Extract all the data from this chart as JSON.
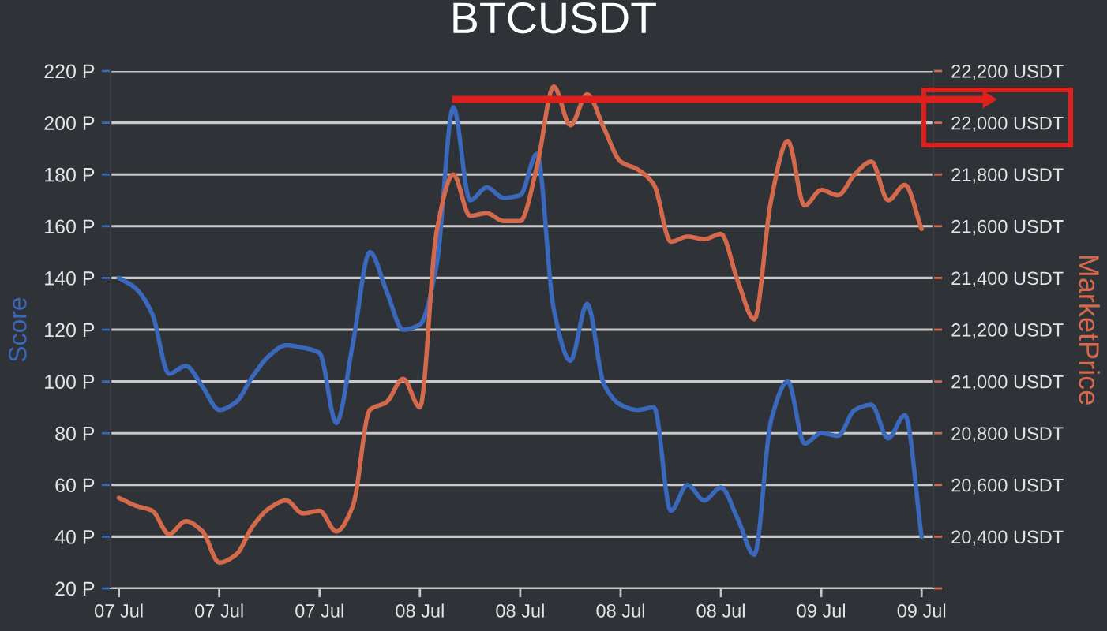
{
  "chart_data": {
    "type": "line",
    "title": "BTCUSDT",
    "ylabel": "Score",
    "y2label": "MarketPrice",
    "categories": [
      "07 Jul",
      null,
      null,
      null,
      null,
      null,
      "07 Jul",
      null,
      null,
      null,
      null,
      null,
      "07 Jul",
      null,
      null,
      null,
      null,
      null,
      "08 Jul",
      null,
      null,
      null,
      null,
      null,
      "08 Jul",
      null,
      null,
      null,
      null,
      null,
      "08 Jul",
      null,
      null,
      null,
      null,
      null,
      "08 Jul",
      null,
      null,
      null,
      null,
      null,
      "09 Jul",
      null,
      null,
      null,
      null,
      null,
      "09 Jul"
    ],
    "series": [
      {
        "color": "#3a68bd",
        "values": [
          140,
          136,
          126,
          103,
          106,
          98,
          89,
          92,
          102,
          110,
          114,
          113,
          111,
          84,
          115,
          150,
          135,
          120,
          122,
          145,
          206,
          170,
          175,
          171,
          172,
          188,
          128,
          108,
          130,
          99,
          91,
          89,
          90,
          50,
          60,
          54,
          59,
          47,
          33,
          85,
          100,
          76,
          80,
          79,
          89,
          91,
          78,
          87,
          40
        ]
      },
      {
        "color": "#d4694c",
        "axis": "y2",
        "values": [
          20550,
          20520,
          20500,
          20410,
          20460,
          20420,
          20300,
          20330,
          20440,
          20510,
          20540,
          20490,
          20500,
          20420,
          20520,
          20890,
          20920,
          21010,
          20900,
          21580,
          21800,
          21640,
          21650,
          21620,
          21620,
          21830,
          22140,
          21990,
          22110,
          21980,
          21850,
          21820,
          21760,
          21540,
          21560,
          21550,
          21570,
          21390,
          21240,
          21700,
          21930,
          21680,
          21740,
          21720,
          21800,
          21850,
          21700,
          21760,
          21590
        ]
      }
    ],
    "ylim": [
      20,
      220
    ],
    "yticks": [
      {
        "value": 20,
        "label": "20 P"
      },
      {
        "value": 40,
        "label": "40 P"
      },
      {
        "value": 60,
        "label": "60 P"
      },
      {
        "value": 80,
        "label": "80 P"
      },
      {
        "value": 100,
        "label": "100 P"
      },
      {
        "value": 120,
        "label": "120 P"
      },
      {
        "value": 140,
        "label": "140 P"
      },
      {
        "value": 160,
        "label": "160 P"
      },
      {
        "value": 180,
        "label": "180 P"
      },
      {
        "value": 200,
        "label": "200 P"
      },
      {
        "value": 220,
        "label": "220 P"
      }
    ],
    "y2lim": [
      20200,
      22200
    ],
    "y2ticks": [
      {
        "value": 20200,
        "label": null
      },
      {
        "value": 20400,
        "label": "20,400 USDT"
      },
      {
        "value": 20600,
        "label": "20,600 USDT"
      },
      {
        "value": 20800,
        "label": "20,800 USDT"
      },
      {
        "value": 21000,
        "label": "21,000 USDT"
      },
      {
        "value": 21200,
        "label": "21,200 USDT"
      },
      {
        "value": 21400,
        "label": "21,400 USDT"
      },
      {
        "value": 21600,
        "label": "21,600 USDT"
      },
      {
        "value": 21800,
        "label": "21,800 USDT"
      },
      {
        "value": 22000,
        "label": "22,000 USDT"
      },
      {
        "value": 22200,
        "label": "22,200 USDT"
      }
    ],
    "grid": "y",
    "marker": "none",
    "line_style": "solid"
  }
}
